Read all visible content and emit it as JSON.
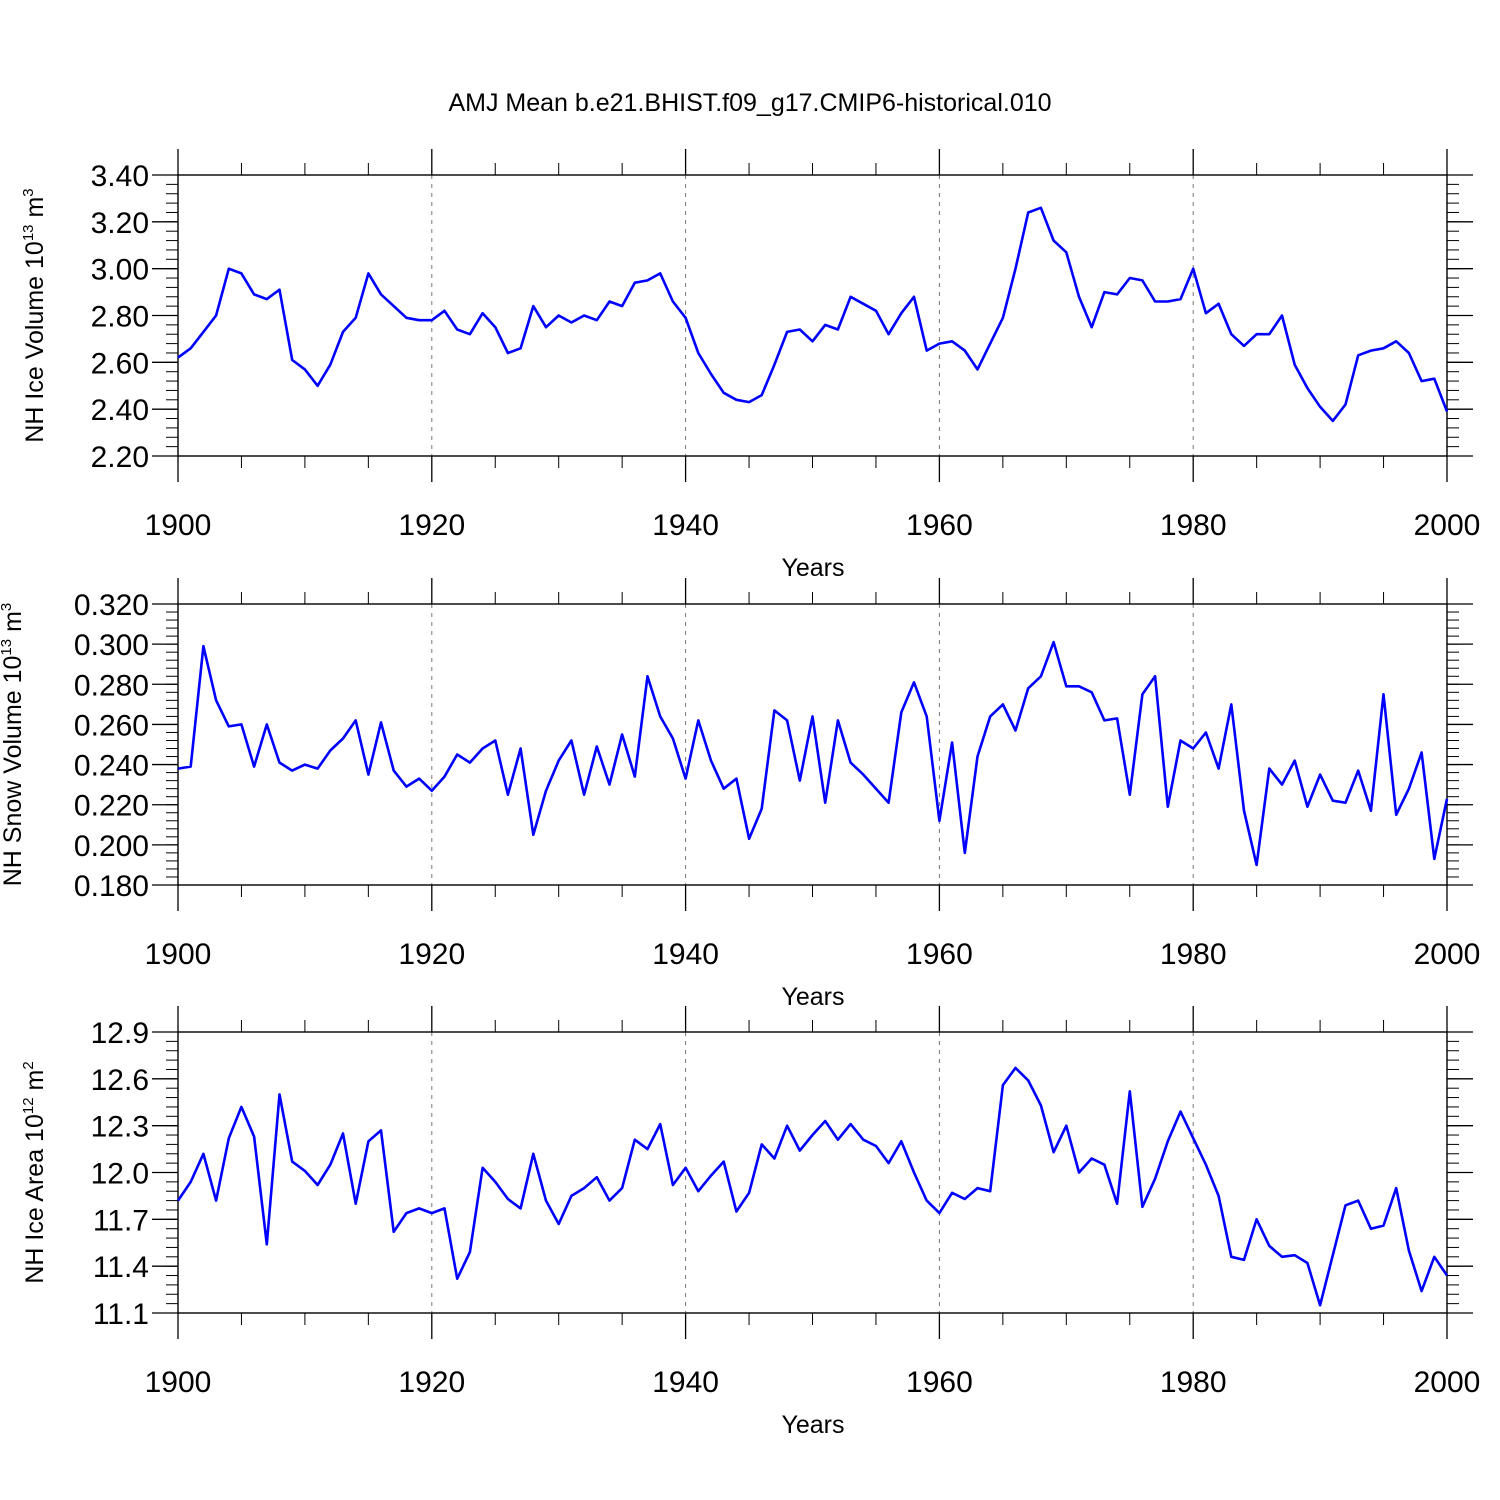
{
  "chart_data": [
    {
      "type": "line",
      "title": "AMJ Mean b.e21.BHIST.f09_g17.CMIP6-historical.010",
      "ylabel_main": "NH Ice Volume 10",
      "ylabel_exp": "13",
      "ylabel_unit": " m",
      "ylabel_unit_exp": "3",
      "xlabel": "Years",
      "xlim": [
        1900,
        2000
      ],
      "ylim": [
        2.2,
        3.4
      ],
      "yticks": [
        2.2,
        2.4,
        2.6,
        2.8,
        3.0,
        3.2,
        3.4
      ],
      "ytick_labels": [
        "2.20",
        "2.40",
        "2.60",
        "2.80",
        "3.00",
        "3.20",
        "3.40"
      ],
      "xticks": [
        1900,
        1920,
        1940,
        1960,
        1980,
        2000
      ],
      "xtick_labels": [
        "1900",
        "1920",
        "1940",
        "1960",
        "1980",
        "2000"
      ],
      "grid_x": [
        1920,
        1940,
        1960,
        1980
      ],
      "color": "#0000ff",
      "x_start": 1900,
      "values": [
        2.62,
        2.66,
        2.73,
        2.8,
        3.0,
        2.98,
        2.89,
        2.87,
        2.91,
        2.61,
        2.57,
        2.5,
        2.59,
        2.73,
        2.79,
        2.98,
        2.89,
        2.84,
        2.79,
        2.78,
        2.78,
        2.82,
        2.74,
        2.72,
        2.81,
        2.75,
        2.64,
        2.66,
        2.84,
        2.75,
        2.8,
        2.77,
        2.8,
        2.78,
        2.86,
        2.84,
        2.94,
        2.95,
        2.98,
        2.86,
        2.79,
        2.64,
        2.55,
        2.47,
        2.44,
        2.43,
        2.46,
        2.59,
        2.73,
        2.74,
        2.69,
        2.76,
        2.74,
        2.88,
        2.85,
        2.82,
        2.72,
        2.81,
        2.88,
        2.65,
        2.68,
        2.69,
        2.65,
        2.57,
        2.68,
        2.79,
        3.0,
        3.24,
        3.26,
        3.12,
        3.07,
        2.88,
        2.75,
        2.9,
        2.89,
        2.96,
        2.95,
        2.86,
        2.86,
        2.87,
        3.0,
        2.81,
        2.85,
        2.72,
        2.67,
        2.72,
        2.72,
        2.8,
        2.59,
        2.49,
        2.41,
        2.35,
        2.42,
        2.63,
        2.65,
        2.66,
        2.69,
        2.64,
        2.52,
        2.53,
        2.39
      ]
    },
    {
      "type": "line",
      "ylabel_main": "NH Snow Volume 10",
      "ylabel_exp": "13",
      "ylabel_unit": " m",
      "ylabel_unit_exp": "3",
      "xlabel": "Years",
      "xlim": [
        1900,
        2000
      ],
      "ylim": [
        0.18,
        0.32
      ],
      "yticks": [
        0.18,
        0.2,
        0.22,
        0.24,
        0.26,
        0.28,
        0.3,
        0.32
      ],
      "ytick_labels": [
        "0.180",
        "0.200",
        "0.220",
        "0.240",
        "0.260",
        "0.280",
        "0.300",
        "0.320"
      ],
      "xticks": [
        1900,
        1920,
        1940,
        1960,
        1980,
        2000
      ],
      "xtick_labels": [
        "1900",
        "1920",
        "1940",
        "1960",
        "1980",
        "2000"
      ],
      "grid_x": [
        1920,
        1940,
        1960,
        1980
      ],
      "color": "#0000ff",
      "x_start": 1900,
      "values": [
        0.238,
        0.239,
        0.299,
        0.272,
        0.259,
        0.26,
        0.239,
        0.26,
        0.241,
        0.237,
        0.24,
        0.238,
        0.247,
        0.253,
        0.262,
        0.235,
        0.261,
        0.237,
        0.229,
        0.233,
        0.227,
        0.234,
        0.245,
        0.241,
        0.248,
        0.252,
        0.225,
        0.248,
        0.205,
        0.227,
        0.242,
        0.252,
        0.225,
        0.249,
        0.23,
        0.255,
        0.234,
        0.284,
        0.264,
        0.253,
        0.233,
        0.262,
        0.242,
        0.228,
        0.233,
        0.203,
        0.218,
        0.267,
        0.262,
        0.232,
        0.264,
        0.221,
        0.262,
        0.241,
        0.235,
        0.228,
        0.221,
        0.266,
        0.281,
        0.264,
        0.212,
        0.251,
        0.196,
        0.244,
        0.264,
        0.27,
        0.257,
        0.278,
        0.284,
        0.301,
        0.279,
        0.279,
        0.276,
        0.262,
        0.263,
        0.225,
        0.275,
        0.284,
        0.219,
        0.252,
        0.248,
        0.256,
        0.238,
        0.27,
        0.217,
        0.19,
        0.238,
        0.23,
        0.242,
        0.219,
        0.235,
        0.222,
        0.221,
        0.237,
        0.217,
        0.275,
        0.215,
        0.228,
        0.246,
        0.193,
        0.223
      ]
    },
    {
      "type": "line",
      "ylabel_main": "NH Ice Area 10",
      "ylabel_exp": "12",
      "ylabel_unit": " m",
      "ylabel_unit_exp": "2",
      "xlabel": "Years",
      "xlim": [
        1900,
        2000
      ],
      "ylim": [
        11.1,
        12.9
      ],
      "yticks": [
        11.1,
        11.4,
        11.7,
        12.0,
        12.3,
        12.6,
        12.9
      ],
      "ytick_labels": [
        "11.1",
        "11.4",
        "11.7",
        "12.0",
        "12.3",
        "12.6",
        "12.9"
      ],
      "xticks": [
        1900,
        1920,
        1940,
        1960,
        1980,
        2000
      ],
      "xtick_labels": [
        "1900",
        "1920",
        "1940",
        "1960",
        "1980",
        "2000"
      ],
      "grid_x": [
        1920,
        1940,
        1960,
        1980
      ],
      "color": "#0000ff",
      "x_start": 1900,
      "values": [
        11.82,
        11.94,
        12.12,
        11.82,
        12.22,
        12.42,
        12.23,
        11.54,
        12.5,
        12.07,
        12.01,
        11.92,
        12.05,
        12.25,
        11.8,
        12.2,
        12.27,
        11.62,
        11.74,
        11.77,
        11.74,
        11.77,
        11.32,
        11.49,
        12.03,
        11.94,
        11.83,
        11.77,
        12.12,
        11.82,
        11.67,
        11.85,
        11.9,
        11.97,
        11.82,
        11.9,
        12.21,
        12.15,
        12.31,
        11.92,
        12.03,
        11.88,
        11.98,
        12.07,
        11.75,
        11.87,
        12.18,
        12.09,
        12.3,
        12.14,
        12.24,
        12.33,
        12.21,
        12.31,
        12.21,
        12.17,
        12.06,
        12.2,
        12.0,
        11.82,
        11.74,
        11.87,
        11.83,
        11.9,
        11.88,
        12.56,
        12.67,
        12.59,
        12.43,
        12.13,
        12.3,
        12.0,
        12.09,
        12.05,
        11.8,
        12.52,
        11.78,
        11.96,
        12.2,
        12.39,
        12.22,
        12.05,
        11.85,
        11.46,
        11.44,
        11.7,
        11.53,
        11.46,
        11.47,
        11.42,
        11.15,
        11.47,
        11.79,
        11.82,
        11.64,
        11.66,
        11.9,
        11.5,
        11.24,
        11.46,
        11.34
      ]
    }
  ]
}
